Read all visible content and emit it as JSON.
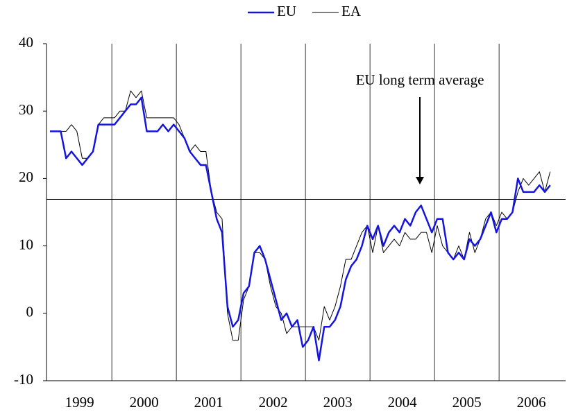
{
  "chart_data": {
    "type": "line",
    "categories": [
      null,
      null,
      null,
      null,
      null,
      "1999",
      null,
      null,
      null,
      null,
      null,
      null,
      null,
      null,
      null,
      null,
      null,
      "2000",
      null,
      null,
      null,
      null,
      null,
      null,
      null,
      null,
      null,
      null,
      null,
      "2001",
      null,
      null,
      null,
      null,
      null,
      null,
      null,
      null,
      null,
      null,
      null,
      "2002",
      null,
      null,
      null,
      null,
      null,
      null,
      null,
      null,
      null,
      null,
      null,
      "2003",
      null,
      null,
      null,
      null,
      null,
      null,
      null,
      null,
      null,
      null,
      null,
      "2004",
      null,
      null,
      null,
      null,
      null,
      null,
      null,
      null,
      null,
      null,
      null,
      "2005",
      null,
      null,
      null,
      null,
      null,
      null,
      null,
      null,
      null,
      null,
      null,
      "2006",
      null,
      null,
      null,
      null
    ],
    "series": [
      {
        "name": "EU",
        "color": "#1414e0",
        "values": [
          27,
          27,
          27,
          23,
          24,
          23,
          22,
          23,
          24,
          28,
          28,
          28,
          28,
          29,
          30,
          31,
          31,
          32,
          27,
          27,
          27,
          28,
          27,
          28,
          27,
          26,
          24,
          23,
          22,
          22,
          18,
          14,
          12,
          1,
          -2,
          -1,
          3,
          4,
          9,
          10,
          8,
          5,
          2,
          -1,
          0,
          -2,
          -1,
          -5,
          -4,
          -2,
          -7,
          -2,
          -2,
          -1,
          1,
          5,
          7,
          8,
          10,
          13,
          11,
          13,
          10,
          12,
          13,
          12,
          14,
          13,
          15,
          16,
          14,
          12,
          14,
          14,
          9,
          8,
          9,
          8,
          11,
          10,
          11,
          13,
          15,
          12,
          14,
          14,
          15,
          20,
          18,
          18,
          18,
          19,
          18,
          19
        ]
      },
      {
        "name": "EA",
        "color": "#000000",
        "values": [
          27,
          27,
          27,
          27,
          28,
          27,
          23,
          23,
          24,
          28,
          29,
          29,
          29,
          30,
          30,
          33,
          32,
          33,
          29,
          29,
          29,
          29,
          29,
          29,
          28,
          26,
          24,
          25,
          24,
          24,
          18,
          15,
          14,
          0,
          -4,
          -4,
          2,
          4,
          9,
          9,
          8,
          4,
          1,
          0,
          -3,
          -2,
          -2,
          -2,
          -2,
          -2,
          -4,
          1,
          -1,
          1,
          4,
          8,
          8,
          10,
          12,
          13,
          9,
          13,
          9,
          10,
          11,
          10,
          12,
          11,
          11,
          12,
          12,
          9,
          13,
          10,
          9,
          8,
          10,
          8,
          12,
          9,
          11,
          14,
          15,
          13,
          15,
          14,
          15,
          18,
          20,
          19,
          20,
          21,
          18,
          21
        ]
      }
    ],
    "ylim": [
      -10,
      40
    ],
    "yticks": [
      -10,
      0,
      10,
      20,
      30,
      40
    ],
    "reference_line": {
      "value": 16.9,
      "label": "EU long term average"
    },
    "legend": "top"
  }
}
